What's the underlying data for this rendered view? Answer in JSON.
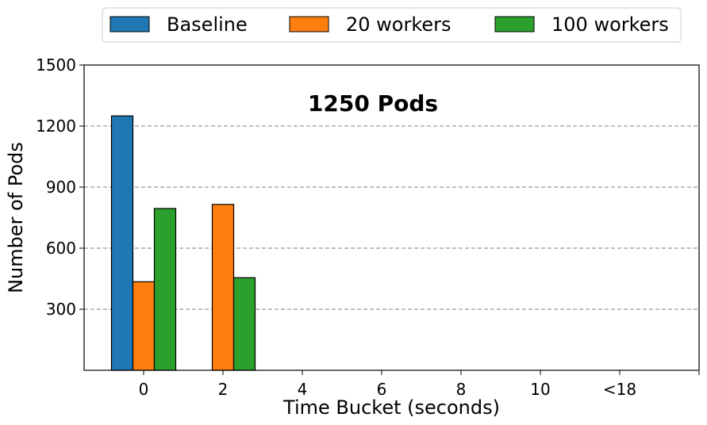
{
  "chart_data": {
    "type": "bar",
    "title": "1250 Pods",
    "xlabel": "Time Bucket (seconds)",
    "ylabel": "Number of Pods",
    "categories": [
      "0",
      "2",
      "4",
      "6",
      "8",
      "10",
      "<18"
    ],
    "series": [
      {
        "name": "Baseline",
        "color": "#1f77b4",
        "values": [
          1250,
          0,
          0,
          0,
          0,
          0,
          0
        ]
      },
      {
        "name": "20 workers",
        "color": "#ff7f0e",
        "values": [
          435,
          815,
          0,
          0,
          0,
          0,
          0
        ]
      },
      {
        "name": "100 workers",
        "color": "#2ca02c",
        "values": [
          795,
          455,
          0,
          0,
          0,
          0,
          0
        ]
      }
    ],
    "ylim": [
      0,
      1500
    ],
    "yticks": [
      "300",
      "600",
      "900",
      "1200",
      "1500"
    ],
    "ytick_values": [
      300,
      600,
      900,
      1200,
      1500
    ],
    "grid": "horizontal dashed",
    "legend_position": "top, above plot"
  }
}
